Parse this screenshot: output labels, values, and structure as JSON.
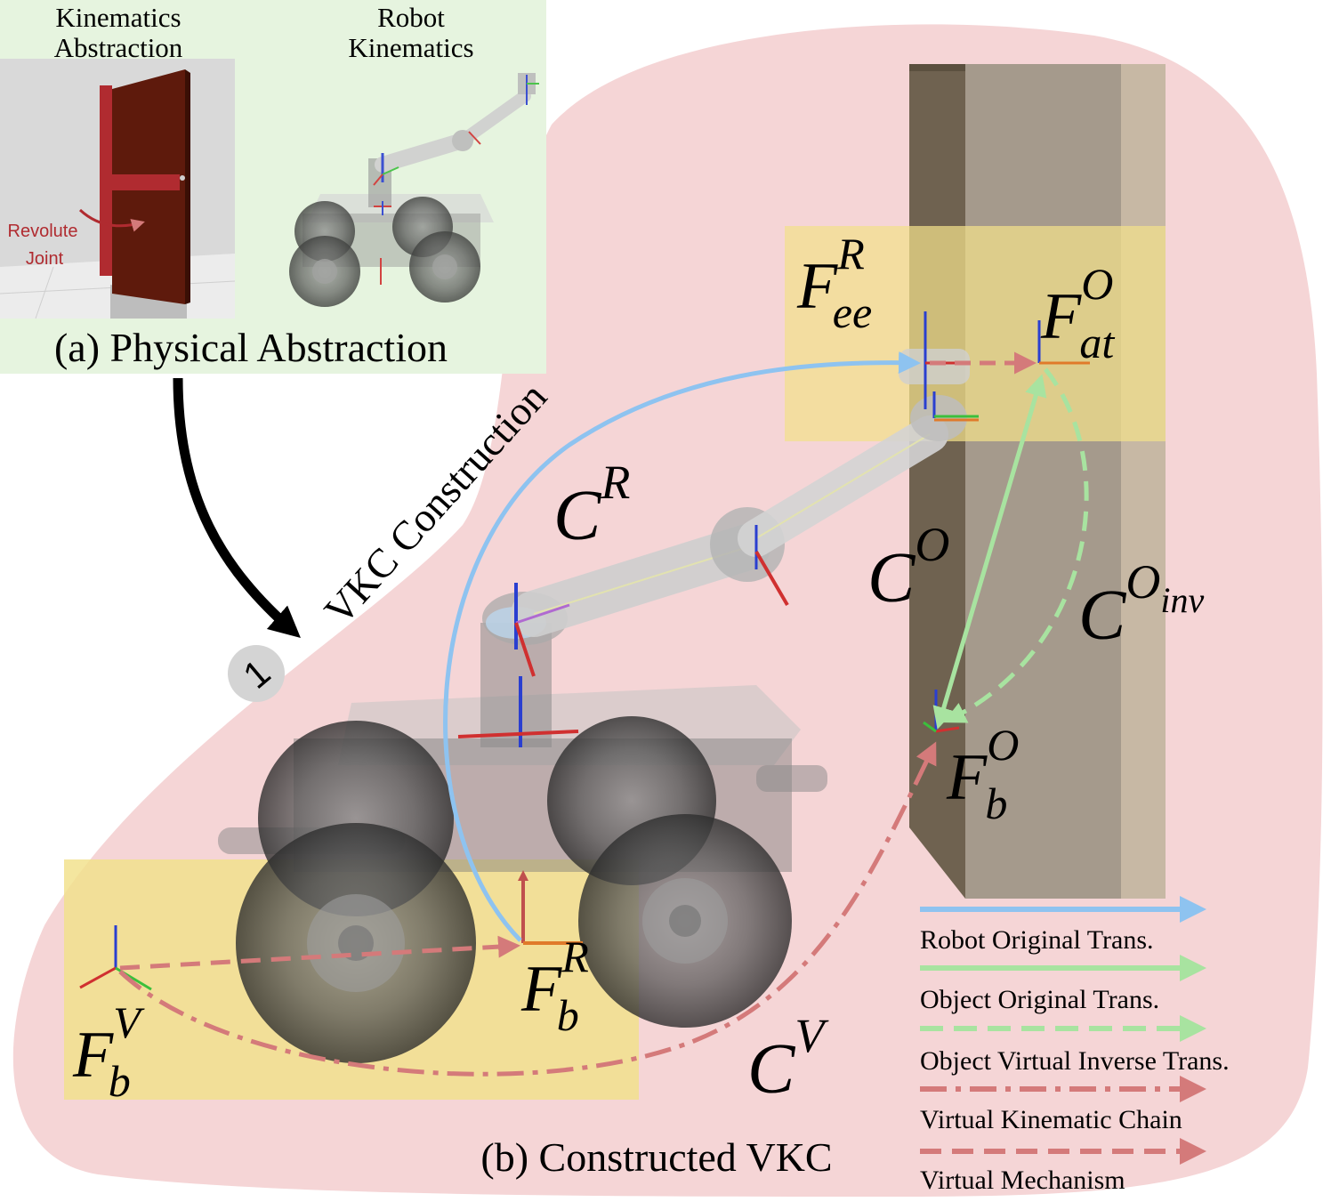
{
  "panel_a": {
    "label_kinematics_abstraction": [
      "Kinematics",
      "Abstraction"
    ],
    "label_robot_kinematics": [
      "Robot",
      "Kinematics"
    ],
    "label_revolute_joint": [
      "Revolute",
      "Joint"
    ],
    "caption": "(a) Physical Abstraction"
  },
  "step": {
    "number": "1",
    "label": "VKC Construction"
  },
  "panel_b": {
    "caption": "(b) Constructed VKC",
    "frames": {
      "F_ee_R": {
        "base": "F",
        "sub": "ee",
        "sup": "R"
      },
      "F_at_O": {
        "base": "F",
        "sub": "at",
        "sup": "O"
      },
      "F_b_O": {
        "base": "F",
        "sub": "b",
        "sup": "O"
      },
      "F_b_R": {
        "base": "F",
        "sub": "b",
        "sup": "R"
      },
      "F_b_V": {
        "base": "F",
        "sub": "b",
        "sup": "V"
      }
    },
    "chains": {
      "C_R": {
        "base": "C",
        "sup": "R"
      },
      "C_O": {
        "base": "C",
        "sup": "O"
      },
      "C_O_inv": {
        "base": "C",
        "sup": "O",
        "supsub": "inv"
      },
      "C_V": {
        "base": "C",
        "sup": "V"
      }
    }
  },
  "legend": {
    "items": [
      {
        "label": "Robot Original Trans.",
        "style": "solid",
        "color": "#8ec3f0"
      },
      {
        "label": "Object Original Trans.",
        "style": "solid",
        "color": "#a8e3a0"
      },
      {
        "label": "Object Virtual Inverse Trans.",
        "style": "dashed",
        "color": "#a8e3a0"
      },
      {
        "label": "Virtual Kinematic Chain",
        "style": "dashdot",
        "color": "#d47a7a"
      },
      {
        "label": "Virtual Mechanism",
        "style": "dashed",
        "color": "#d47a7a"
      }
    ]
  },
  "colors": {
    "vkc_region": "#f5d5d6",
    "panel_a_bg": "#e6f4df",
    "highlight": "#f2e08a",
    "robot_trans": "#8ec3f0",
    "object_trans": "#a8e3a0",
    "virtual": "#d47a7a",
    "door": "#5e1a0c",
    "door_frame": "#b02b30",
    "wall_light": "#a59a8c",
    "wall_dark": "#6f6250"
  }
}
